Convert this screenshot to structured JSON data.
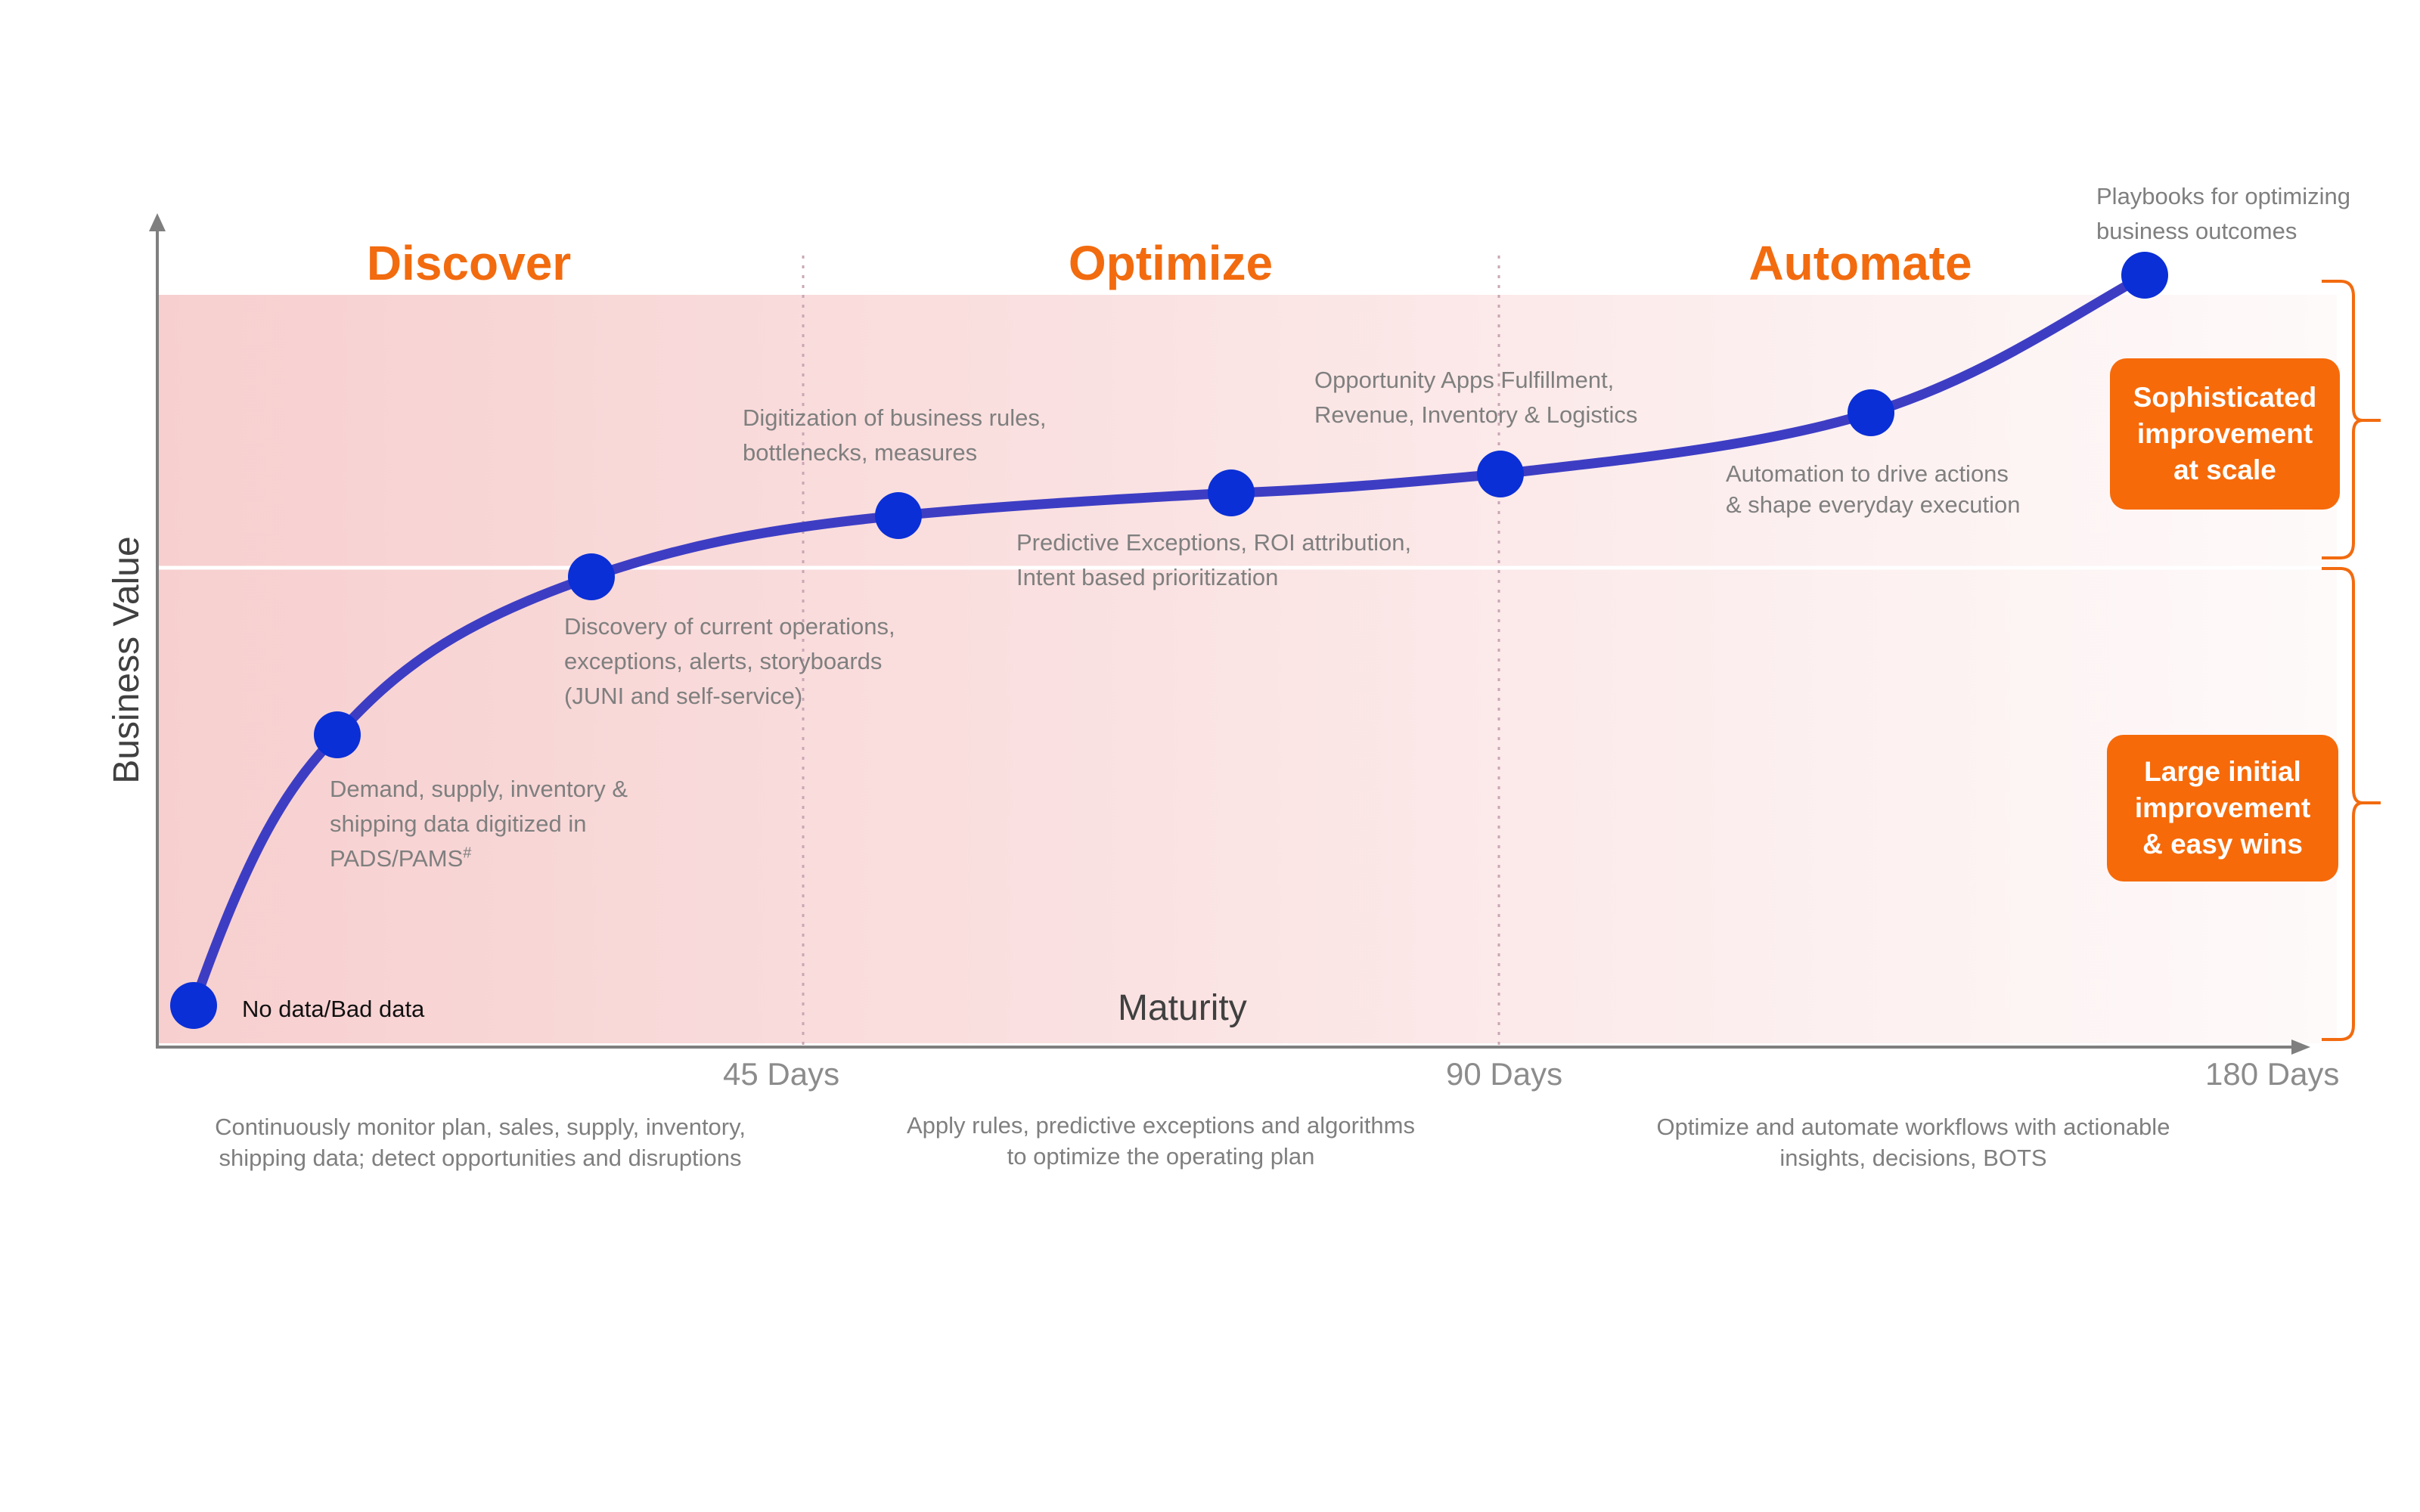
{
  "phases": [
    "Discover",
    "Optimize",
    "Automate"
  ],
  "axes": {
    "y_title": "Business Value",
    "x_title": "Maturity",
    "ticks": [
      "45 Days",
      "90 Days",
      "180 Days"
    ]
  },
  "milestones": [
    {
      "label": "No data/Bad data"
    },
    {
      "label": "Demand, supply, inventory &\nshipping data digitized in\nPADS/PAMS",
      "superscript": "#"
    },
    {
      "label": "Discovery of current operations,\nexceptions, alerts, storyboards\n(JUNI and self-service)"
    },
    {
      "label": "Digitization of business rules,\nbottlenecks, measures"
    },
    {
      "label": "Predictive Exceptions, ROI attribution,\nIntent based prioritization"
    },
    {
      "label": "Opportunity Apps Fulfillment,\nRevenue, Inventory & Logistics"
    },
    {
      "label": "Automation to drive actions\n& shape everyday execution"
    },
    {
      "label": "Playbooks for optimizing\nbusiness outcomes"
    }
  ],
  "phase_descriptions": [
    "Continuously monitor plan, sales, supply, inventory,\nshipping data; detect opportunities and disruptions",
    "Apply rules, predictive exceptions and algorithms\nto optimize the operating plan",
    "Optimize and automate workflows with actionable\ninsights, decisions, BOTS"
  ],
  "callouts": {
    "upper": "Sophisticated\nimprovement\nat scale",
    "lower": "Large initial\nimprovement\n& easy wins"
  },
  "colors": {
    "accent": "#f26b0f",
    "curve": "#3d3dc4",
    "node": "#0a2fd6",
    "band": "#f9d4d4",
    "axis": "#7f7f7f"
  }
}
